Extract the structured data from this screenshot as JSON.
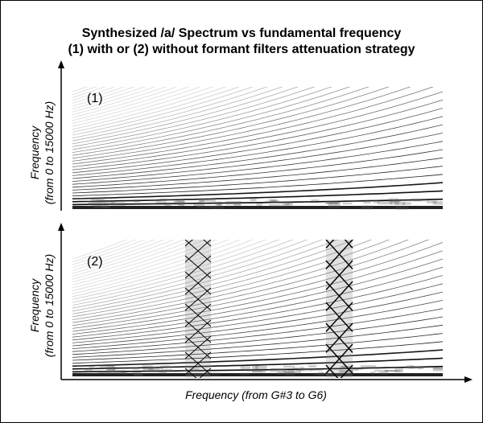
{
  "title": {
    "line1": "Synthesized /a/ Spectrum vs fundamental frequency",
    "line2": "(1) with or (2) without formant filters attenuation strategy"
  },
  "panels": [
    {
      "label": "(1)",
      "y_axis_label": {
        "line1": "Frequency",
        "line2": "(from 0 to 15000 Hz)"
      }
    },
    {
      "label": "(2)",
      "y_axis_label": {
        "line1": "Frequency",
        "line2": "(from 0 to 15000 Hz)"
      }
    }
  ],
  "x_axis_label": "Frequency (from G#3 to G6)"
}
